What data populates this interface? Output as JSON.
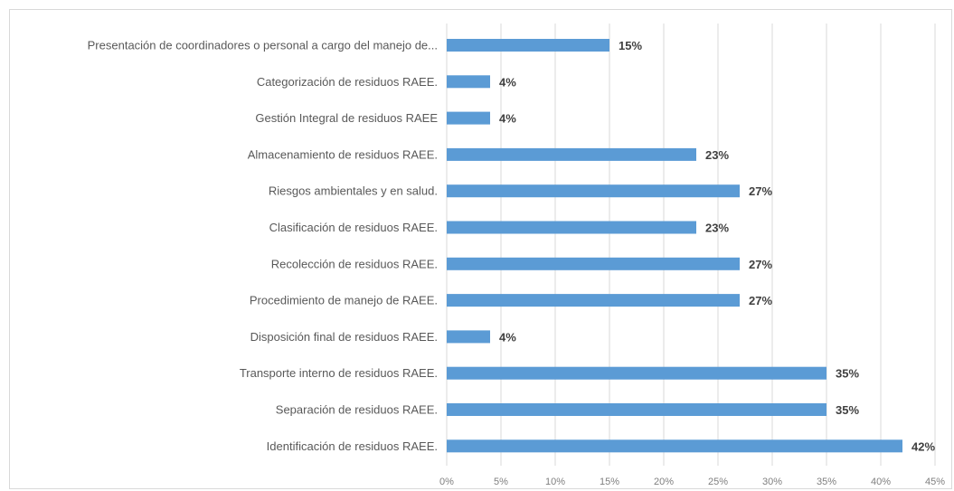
{
  "chart_data": {
    "type": "bar",
    "orientation": "horizontal",
    "title": "",
    "xlabel": "",
    "ylabel": "",
    "categories": [
      "Presentación de coordinadores o personal a cargo del manejo de...",
      "Categorización de residuos RAEE.",
      "Gestión Integral de residuos RAEE",
      "Almacenamiento de residuos RAEE.",
      "Riesgos ambientales y en salud.",
      "Clasificación de residuos RAEE.",
      "Recolección de residuos RAEE.",
      "Procedimiento de manejo de RAEE.",
      "Disposición final de residuos RAEE.",
      "Transporte interno de residuos RAEE.",
      "Separación de residuos RAEE.",
      "Identificación de residuos RAEE."
    ],
    "values": [
      15,
      4,
      4,
      23,
      27,
      23,
      27,
      27,
      4,
      35,
      35,
      42
    ],
    "data_labels": [
      "15%",
      "4%",
      "4%",
      "23%",
      "27%",
      "23%",
      "27%",
      "27%",
      "4%",
      "35%",
      "35%",
      "42%"
    ],
    "xlim": [
      0,
      45
    ],
    "x_ticks": [
      "0%",
      "5%",
      "10%",
      "15%",
      "20%",
      "25%",
      "30%",
      "35%",
      "40%",
      "45%"
    ],
    "x_tick_values": [
      0,
      5,
      10,
      15,
      20,
      25,
      30,
      35,
      40,
      45
    ],
    "grid": "vertical",
    "legend": "none",
    "colors": {
      "bar": "#5b9bd5",
      "gridline": "#d9d9d9",
      "category_text": "#595959",
      "tick_text": "#7f7f7f",
      "data_label_text": "#404040"
    }
  }
}
